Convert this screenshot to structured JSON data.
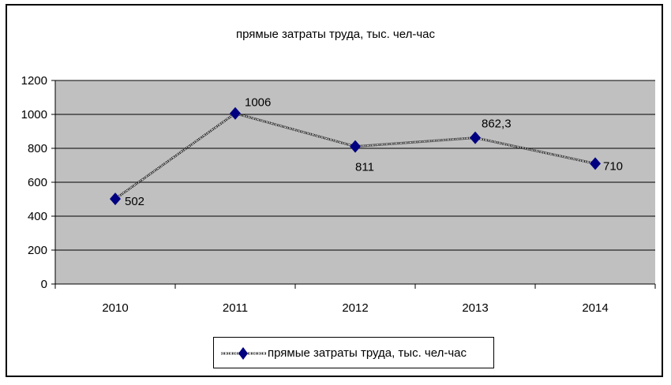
{
  "chart_data": {
    "type": "line",
    "title": "прямые затраты труда, тыс. чел-час",
    "xlabel": "",
    "ylabel": "",
    "categories": [
      "2010",
      "2011",
      "2012",
      "2013",
      "2014"
    ],
    "series": [
      {
        "name": "прямые затраты труда, тыс. чел-час",
        "values": [
          502,
          1006,
          811,
          862.3,
          710
        ],
        "data_labels": [
          "502",
          "1006",
          "811",
          "862,3",
          "710"
        ],
        "marker": "diamond",
        "line_style": "dotted"
      }
    ],
    "ylim": [
      0,
      1200
    ],
    "yticks": [
      0,
      200,
      400,
      600,
      800,
      1000,
      1200
    ],
    "ytick_labels": [
      "0",
      "200",
      "400",
      "600",
      "800",
      "1000",
      "1200"
    ],
    "grid": true,
    "legend_position": "bottom",
    "colors": {
      "plot_background": "#c0c0c0",
      "marker": "#000080",
      "line": "#000000",
      "gridline": "#000000"
    }
  }
}
